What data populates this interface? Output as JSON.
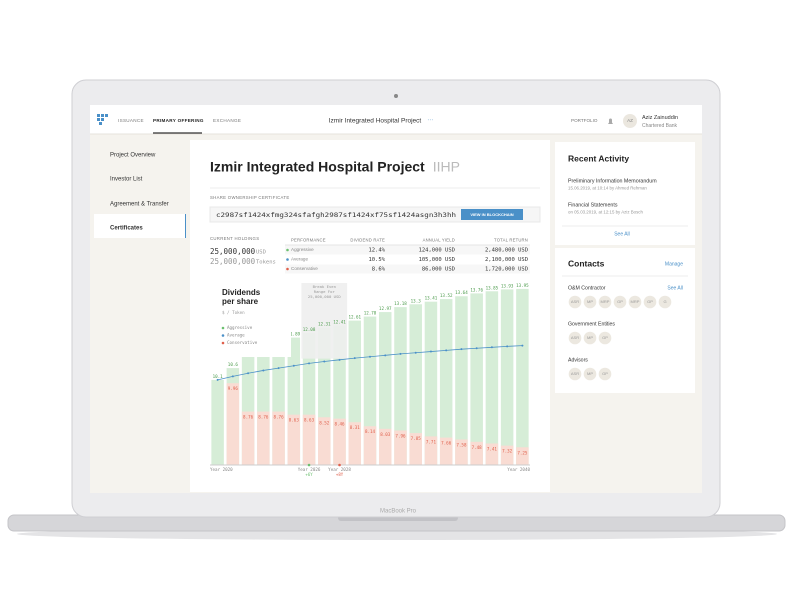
{
  "device": "MacBook Pro",
  "nav": {
    "tabs": [
      "ISSUANCE",
      "PRIMARY OFFERING",
      "EXCHANGE"
    ],
    "project": "Izmir Integrated Hospital Project",
    "portfolio": "PORTFOLIO",
    "user": {
      "initials": "AZ",
      "name": "Aziz Zainuddin",
      "org": "Chartered Bank"
    }
  },
  "sidebar": [
    "Project Overview",
    "Investor List",
    "Agreement & Transfer",
    "Certificates"
  ],
  "main": {
    "title": "Izmir Integrated Hospital Project",
    "ticker": "IIHP",
    "certificate_label": "SHARE OWNERSHIP CERTIFICATE",
    "hash": "c2987sf1424xfmg324sfafgh2987sf1424xf75sf1424asgn3h3hh",
    "button": "VIEW IN BLOCKCHAIN",
    "holdings_label": "CURRENT HOLDINGS",
    "holdings": [
      {
        "amount": "25,000,000",
        "unit": "USD"
      },
      {
        "amount": "25,000,000",
        "unit": "Tokens"
      }
    ],
    "table": {
      "columns": [
        "PERFORMANCE",
        "DIVIDEND RATE",
        "ANNUAL YIELD",
        "TOTAL RETURN"
      ],
      "rows": [
        [
          "Aggressive",
          "12.4%",
          "124,000 USD",
          "2,480,000 USD"
        ],
        [
          "Average",
          "10.5%",
          "105,000 USD",
          "2,100,000 USD"
        ],
        [
          "Conservative",
          "8.6%",
          "86,000 USD",
          "1,720,000 USD"
        ]
      ]
    }
  },
  "chart_data": {
    "type": "bar",
    "title": [
      "Dividends",
      "per share"
    ],
    "unit": "$ / Token",
    "break_even": [
      "Break Even",
      "Range For",
      "25,000,000 USD"
    ],
    "categories": [
      "Year 2020",
      null,
      null,
      null,
      null,
      null,
      "Year 2026",
      null,
      "Year 2028",
      null,
      null,
      null,
      null,
      null,
      null,
      null,
      null,
      null,
      null,
      null,
      "Year 2040"
    ],
    "category_notes": [
      null,
      null,
      null,
      null,
      null,
      null,
      "+6Y",
      null,
      "+8Y",
      null,
      null,
      null,
      null,
      null,
      null,
      null,
      null,
      null,
      null,
      null,
      null
    ],
    "ylim": [
      6.5,
      14.2
    ],
    "series": [
      {
        "name": "Aggressive",
        "color": "#6cc070",
        "values": [
          10.1,
          10.6,
          11.1,
          11.44,
          11.67,
          11.89,
          12.08,
          12.31,
          12.41,
          12.61,
          12.78,
          12.97,
          13.18,
          13.3,
          13.41,
          13.52,
          13.64,
          13.76,
          13.85,
          13.93,
          13.95
        ]
      },
      {
        "name": "Average",
        "color": "#4a90c8",
        "values": [
          10.1,
          10.25,
          10.38,
          10.5,
          10.6,
          10.7,
          10.8,
          10.88,
          10.95,
          11.02,
          11.08,
          11.14,
          11.2,
          11.25,
          11.3,
          11.35,
          11.4,
          11.44,
          11.48,
          11.52,
          11.55
        ]
      },
      {
        "name": "Conservative",
        "color": "#e0604c",
        "values": [
          null,
          9.96,
          8.76,
          8.76,
          8.76,
          8.63,
          8.63,
          8.52,
          8.46,
          8.31,
          8.14,
          8.03,
          7.96,
          7.85,
          7.71,
          7.66,
          7.58,
          7.48,
          7.41,
          7.32,
          7.25
        ]
      }
    ]
  },
  "activity": {
    "title": "Recent Activity",
    "items": [
      {
        "title": "Preliminary Information Memorandum",
        "meta": "15.06.2019, at 10:14 by Ahmed Rehman"
      },
      {
        "title": "Financial Statements",
        "meta": "on 05.03.2019, at 12:15 by Aziz Bosch"
      }
    ],
    "see_all": "See All"
  },
  "contacts": {
    "title": "Contacts",
    "manage": "Manage",
    "groups": [
      {
        "name": "O&M Contractor",
        "see_all": "See All",
        "members": [
          "ASR",
          "MP",
          "MRP",
          "GP",
          "MRP",
          "GP",
          "G"
        ]
      },
      {
        "name": "Government Entities",
        "members": [
          "ASR",
          "MP",
          "GP"
        ]
      },
      {
        "name": "Advisors",
        "members": [
          "ASR",
          "MP",
          "GP"
        ]
      }
    ]
  }
}
